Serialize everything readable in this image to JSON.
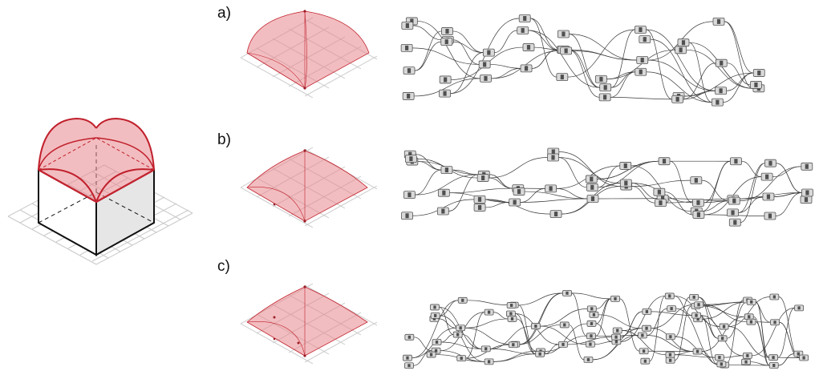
{
  "panels": [
    {
      "label": "a)"
    },
    {
      "label": "b)"
    },
    {
      "label": "c)"
    }
  ],
  "colors": {
    "vault_fill": "#e8868c",
    "vault_stroke": "#c0202c",
    "cube_top_stroke": "#c4232f",
    "grid": "#c9c9c9",
    "node": "#d9d9d9"
  },
  "icons": [
    "groin-vault-cube",
    "vault-surface",
    "node-graph"
  ]
}
